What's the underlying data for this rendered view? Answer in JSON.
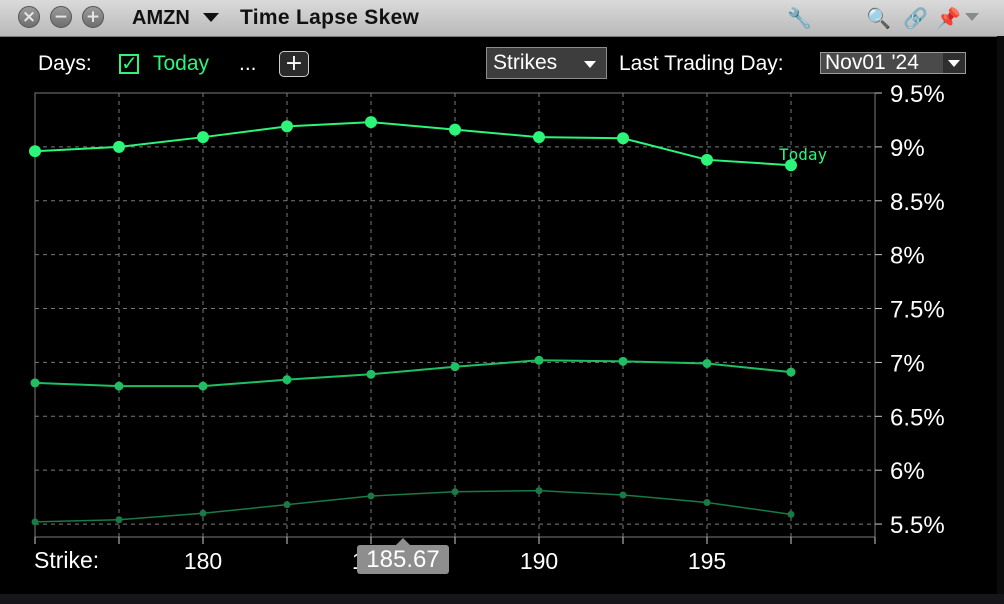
{
  "window": {
    "symbol": "AMZN",
    "title": "Time Lapse Skew",
    "buttons": {
      "close": "×",
      "minimize": "−",
      "maximize": "+"
    }
  },
  "controls": {
    "days_label": "Days:",
    "today_label": "Today",
    "today_checked": true,
    "ellipsis": "...",
    "add_button": "+",
    "mode_select": "Strikes",
    "last_trading_day_label": "Last Trading Day:",
    "last_trading_day_value": "Nov01 '24"
  },
  "icons": [
    "close-icon",
    "minimize-icon",
    "maximize-icon",
    "wrench-icon",
    "search-icon",
    "link-icon",
    "pin-icon",
    "chevron-down-icon"
  ],
  "colors": {
    "today_series": "#2cf57a",
    "series_2": "#1fbf63",
    "series_3": "#1a7a45",
    "grid": "#7a7a7a",
    "background": "#000000"
  },
  "axis": {
    "strike_label": "Strike:",
    "cursor_value": "185.67"
  },
  "chart_data": {
    "type": "line",
    "x": [
      175,
      177.5,
      180,
      182.5,
      185,
      187.5,
      190,
      192.5,
      195,
      197.5
    ],
    "xlim": [
      175,
      200
    ],
    "xticks": [
      180,
      185,
      190,
      195
    ],
    "ylim": [
      5.38,
      9.5
    ],
    "yticks": [
      "9.5%",
      "9%",
      "8.5%",
      "8%",
      "7.5%",
      "7%",
      "6.5%",
      "6%",
      "5.5%"
    ],
    "ytick_values": [
      9.5,
      9.0,
      8.5,
      8.0,
      7.5,
      7.0,
      6.5,
      6.0,
      5.5
    ],
    "grid": true,
    "series": [
      {
        "name": "Today",
        "values": [
          8.96,
          9.0,
          9.09,
          9.19,
          9.23,
          9.16,
          9.09,
          9.08,
          8.88,
          8.83
        ]
      },
      {
        "values": [
          6.81,
          6.78,
          6.78,
          6.84,
          6.89,
          6.96,
          7.02,
          7.01,
          6.99,
          6.91
        ]
      },
      {
        "values": [
          5.52,
          5.54,
          5.6,
          5.68,
          5.76,
          5.8,
          5.81,
          5.77,
          5.7,
          5.59
        ]
      }
    ]
  }
}
